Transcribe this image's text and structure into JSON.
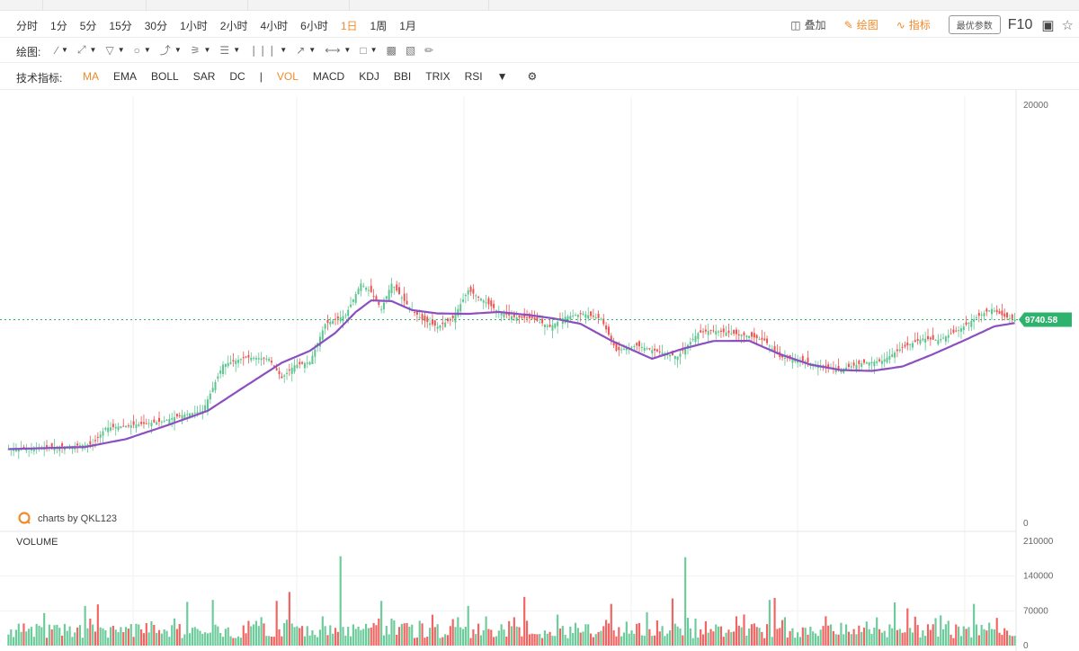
{
  "toolbar": {
    "periods": [
      "分时",
      "1分",
      "5分",
      "15分",
      "30分",
      "1小时",
      "2小时",
      "4小时",
      "6小时",
      "1日",
      "1周",
      "1月"
    ],
    "active_period": "1日",
    "overlay_label": "叠加",
    "draw_label": "绘图",
    "indicator_label": "指标",
    "param_button": "最优参数",
    "f10_label": "F10"
  },
  "drawing_bar": {
    "label": "绘图:"
  },
  "indicator_bar": {
    "label": "技术指标:",
    "items": [
      "MA",
      "EMA",
      "BOLL",
      "SAR",
      "DC",
      "|",
      "VOL",
      "MACD",
      "KDJ",
      "BBI",
      "TRIX",
      "RSI"
    ],
    "active": [
      "MA",
      "VOL"
    ]
  },
  "colors": {
    "up": "#5cc58f",
    "down": "#ef5350",
    "ma": "#8b4fc0",
    "accent": "#f08a2a",
    "price_tag": "#2fb26d"
  },
  "chart_data": {
    "type": "candlestick",
    "price_axis": {
      "min": 0,
      "max": 20000,
      "ticks": [
        20000,
        0
      ]
    },
    "volume_axis": {
      "min": 0,
      "max": 210000,
      "ticks": [
        210000,
        140000,
        70000,
        0
      ]
    },
    "current_price": "9740.58",
    "watermark": "charts by QKL123",
    "volume_label": "VOLUME",
    "close_path": [
      [
        0,
        3550
      ],
      [
        15,
        3640
      ],
      [
        26,
        3710
      ],
      [
        33,
        3780
      ],
      [
        38,
        4560
      ],
      [
        50,
        4720
      ],
      [
        60,
        4870
      ],
      [
        67,
        5150
      ],
      [
        76,
        5370
      ],
      [
        84,
        7590
      ],
      [
        93,
        7940
      ],
      [
        102,
        7870
      ],
      [
        107,
        6950
      ],
      [
        112,
        7560
      ],
      [
        118,
        7710
      ],
      [
        124,
        9530
      ],
      [
        132,
        9960
      ],
      [
        138,
        11470
      ],
      [
        142,
        11060
      ],
      [
        146,
        10250
      ],
      [
        150,
        11470
      ],
      [
        156,
        10470
      ],
      [
        162,
        9740
      ],
      [
        168,
        9400
      ],
      [
        174,
        9810
      ],
      [
        180,
        11150
      ],
      [
        186,
        10660
      ],
      [
        192,
        10110
      ],
      [
        198,
        9860
      ],
      [
        205,
        9800
      ],
      [
        212,
        9400
      ],
      [
        218,
        9880
      ],
      [
        225,
        10030
      ],
      [
        232,
        9780
      ],
      [
        238,
        8260
      ],
      [
        246,
        8500
      ],
      [
        253,
        8260
      ],
      [
        262,
        7970
      ],
      [
        270,
        9100
      ],
      [
        275,
        9230
      ],
      [
        283,
        9090
      ],
      [
        290,
        8960
      ],
      [
        296,
        8750
      ],
      [
        302,
        7960
      ],
      [
        310,
        7800
      ],
      [
        318,
        7530
      ],
      [
        326,
        7380
      ],
      [
        335,
        7680
      ],
      [
        342,
        7770
      ],
      [
        350,
        8400
      ],
      [
        358,
        8840
      ],
      [
        364,
        8760
      ],
      [
        372,
        9240
      ],
      [
        379,
        9860
      ],
      [
        385,
        10250
      ],
      [
        390,
        9880
      ],
      [
        394,
        9740
      ]
    ],
    "ma_path": [
      [
        0,
        3550
      ],
      [
        30,
        3650
      ],
      [
        46,
        4030
      ],
      [
        62,
        4680
      ],
      [
        78,
        5380
      ],
      [
        92,
        6500
      ],
      [
        107,
        7680
      ],
      [
        118,
        8250
      ],
      [
        128,
        9110
      ],
      [
        136,
        10110
      ],
      [
        142,
        10660
      ],
      [
        150,
        10630
      ],
      [
        158,
        10200
      ],
      [
        168,
        10040
      ],
      [
        180,
        10020
      ],
      [
        192,
        10110
      ],
      [
        204,
        9960
      ],
      [
        214,
        9790
      ],
      [
        224,
        9540
      ],
      [
        236,
        8740
      ],
      [
        252,
        7870
      ],
      [
        264,
        8350
      ],
      [
        276,
        8720
      ],
      [
        290,
        8730
      ],
      [
        302,
        8090
      ],
      [
        314,
        7590
      ],
      [
        326,
        7330
      ],
      [
        338,
        7290
      ],
      [
        350,
        7500
      ],
      [
        362,
        8090
      ],
      [
        374,
        8740
      ],
      [
        386,
        9420
      ],
      [
        394,
        9580
      ]
    ],
    "volume_spikes": [
      [
        30,
        80000
      ],
      [
        35,
        83000
      ],
      [
        70,
        88000
      ],
      [
        80,
        92000
      ],
      [
        105,
        90000
      ],
      [
        110,
        108000
      ],
      [
        130,
        180000
      ],
      [
        146,
        90000
      ],
      [
        180,
        80000
      ],
      [
        202,
        98000
      ],
      [
        236,
        84000
      ],
      [
        260,
        95000
      ],
      [
        265,
        178000
      ],
      [
        298,
        92000
      ],
      [
        300,
        96000
      ],
      [
        347,
        87000
      ],
      [
        352,
        75000
      ],
      [
        378,
        84000
      ]
    ]
  }
}
